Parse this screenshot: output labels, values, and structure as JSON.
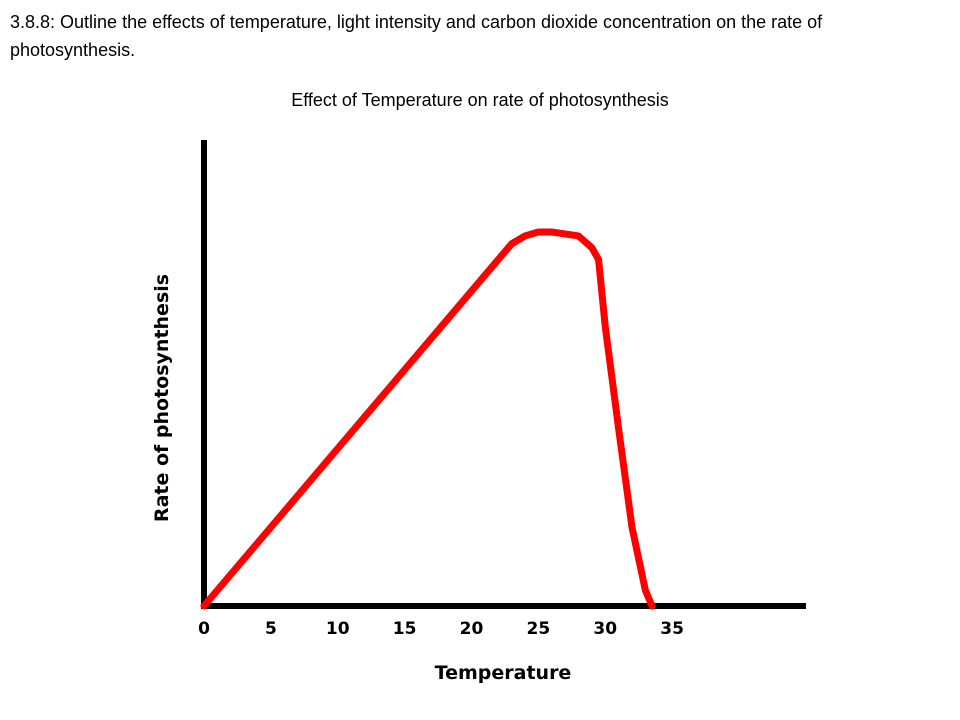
{
  "slide": {
    "heading": "3.8.8: Outline the effects of temperature, light intensity and carbon dioxide concentration on the rate of photosynthesis."
  },
  "chart_data": {
    "type": "line",
    "title": "Effect of Temperature on rate of photosynthesis",
    "xlabel": "Temperature",
    "ylabel": "Rate of photosynthesis",
    "xticks": [
      0,
      5,
      10,
      15,
      20,
      25,
      30,
      35
    ],
    "xlim": [
      0,
      44
    ],
    "ylim": [
      0,
      100
    ],
    "yticks_labeled": false,
    "grid": false,
    "legend": "none",
    "series": [
      {
        "color": "#ff0000",
        "x": [
          0,
          5,
          10,
          15,
          20,
          22,
          23,
          24,
          25,
          26,
          27,
          28,
          29,
          29.5,
          30,
          31,
          32,
          33,
          33.5
        ],
        "y": [
          0,
          20,
          40,
          60,
          80,
          88,
          92,
          94,
          95,
          95,
          94.5,
          94,
          91,
          88,
          71,
          45,
          20,
          4,
          0
        ]
      }
    ]
  }
}
